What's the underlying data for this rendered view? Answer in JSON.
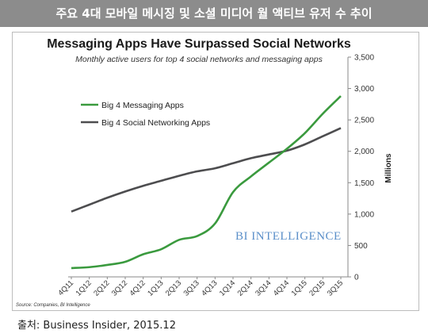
{
  "header": {
    "title": "주요 4대 모바일 메시징 및 소셜 미디어 월 액티브 유저 수 추이"
  },
  "chart_data": {
    "type": "line",
    "title": "Messaging Apps Have Surpassed Social Networks",
    "subtitle": "Monthly active users for top 4 social networks and messaging apps",
    "xlabel": "",
    "ylabel": "Millions",
    "y_axis_side": "right",
    "ylim": [
      0,
      3500
    ],
    "yticks": [
      0,
      500,
      1000,
      1500,
      2000,
      2500,
      3000,
      3500
    ],
    "ytick_labels": [
      "0",
      "500",
      "1,000",
      "1,500",
      "2,000",
      "2,500",
      "3,000",
      "3,500"
    ],
    "categories": [
      "4Q11",
      "1Q12",
      "2Q12",
      "3Q12",
      "4Q12",
      "1Q13",
      "2Q13",
      "3Q13",
      "4Q13",
      "1Q14",
      "2Q14",
      "3Q14",
      "4Q14",
      "1Q15",
      "2Q15",
      "3Q15"
    ],
    "grid": false,
    "legend": "center-left",
    "series": [
      {
        "name": "Big 4 Messaging Apps",
        "color": "#3a9a3e",
        "values": [
          140,
          155,
          190,
          240,
          360,
          440,
          590,
          650,
          850,
          1350,
          1600,
          1820,
          2040,
          2290,
          2600,
          2880
        ]
      },
      {
        "name": "Big 4 Social Networking Apps",
        "color": "#4d4d4f",
        "values": [
          1040,
          1150,
          1260,
          1360,
          1450,
          1530,
          1610,
          1680,
          1730,
          1810,
          1890,
          1950,
          2010,
          2110,
          2240,
          2370
        ]
      }
    ],
    "watermark": "BI INTELLIGENCE",
    "source": "Source: Companies, BI Intelligence"
  },
  "footer": {
    "text": "출처: Business Insider, 2015.12"
  }
}
